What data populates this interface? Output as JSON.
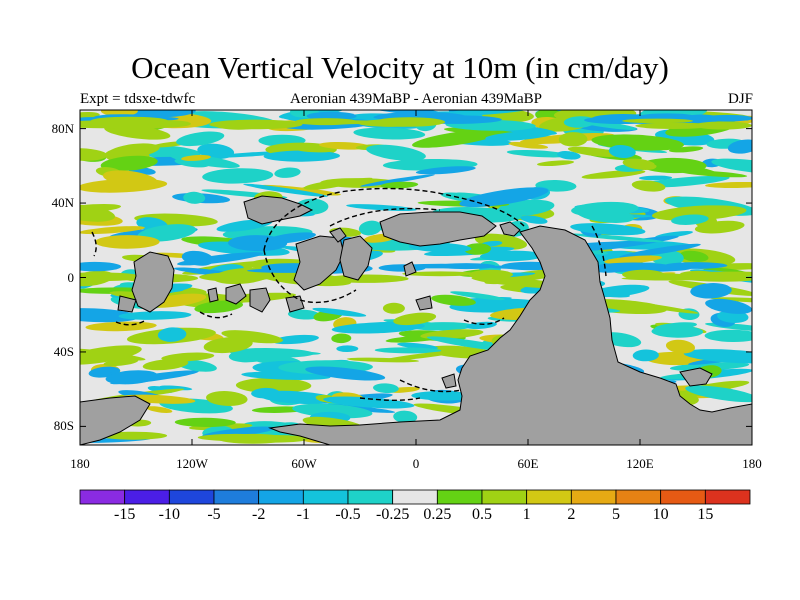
{
  "title": "Ocean Vertical Velocity at 10m (in cm/day)",
  "subtitle_left": "Expt = tdsxe-tdwfc",
  "subtitle_center": "Aeronian 439MaBP - Aeronian 439MaBP",
  "subtitle_right": "DJF",
  "y_axis_labels": [
    "80N",
    "40N",
    "0",
    "40S",
    "80S"
  ],
  "y_axis_values": [
    80,
    40,
    0,
    -40,
    -80
  ],
  "x_axis_labels": [
    "180",
    "120W",
    "60W",
    "0",
    "60E",
    "120E",
    "180"
  ],
  "x_axis_values": [
    -180,
    -120,
    -60,
    0,
    60,
    120,
    180
  ],
  "colorbar": {
    "labels": [
      "-15",
      "-10",
      "-5",
      "-2",
      "-1",
      "-0.5",
      "-0.25",
      "0.25",
      "0.5",
      "1",
      "2",
      "5",
      "10",
      "15"
    ],
    "colors": [
      "#8a2be2",
      "#4b1ee6",
      "#1e46dc",
      "#1e7ddc",
      "#14a5e6",
      "#14c3dc",
      "#1ed2c8",
      "#e6e6e6",
      "#64d214",
      "#a0d214",
      "#d2c814",
      "#e6aa14",
      "#e68214",
      "#e65a14",
      "#dc321e"
    ]
  },
  "land_color": "#a0a0a0",
  "ocean_zero_color": "#e6e6e6"
}
